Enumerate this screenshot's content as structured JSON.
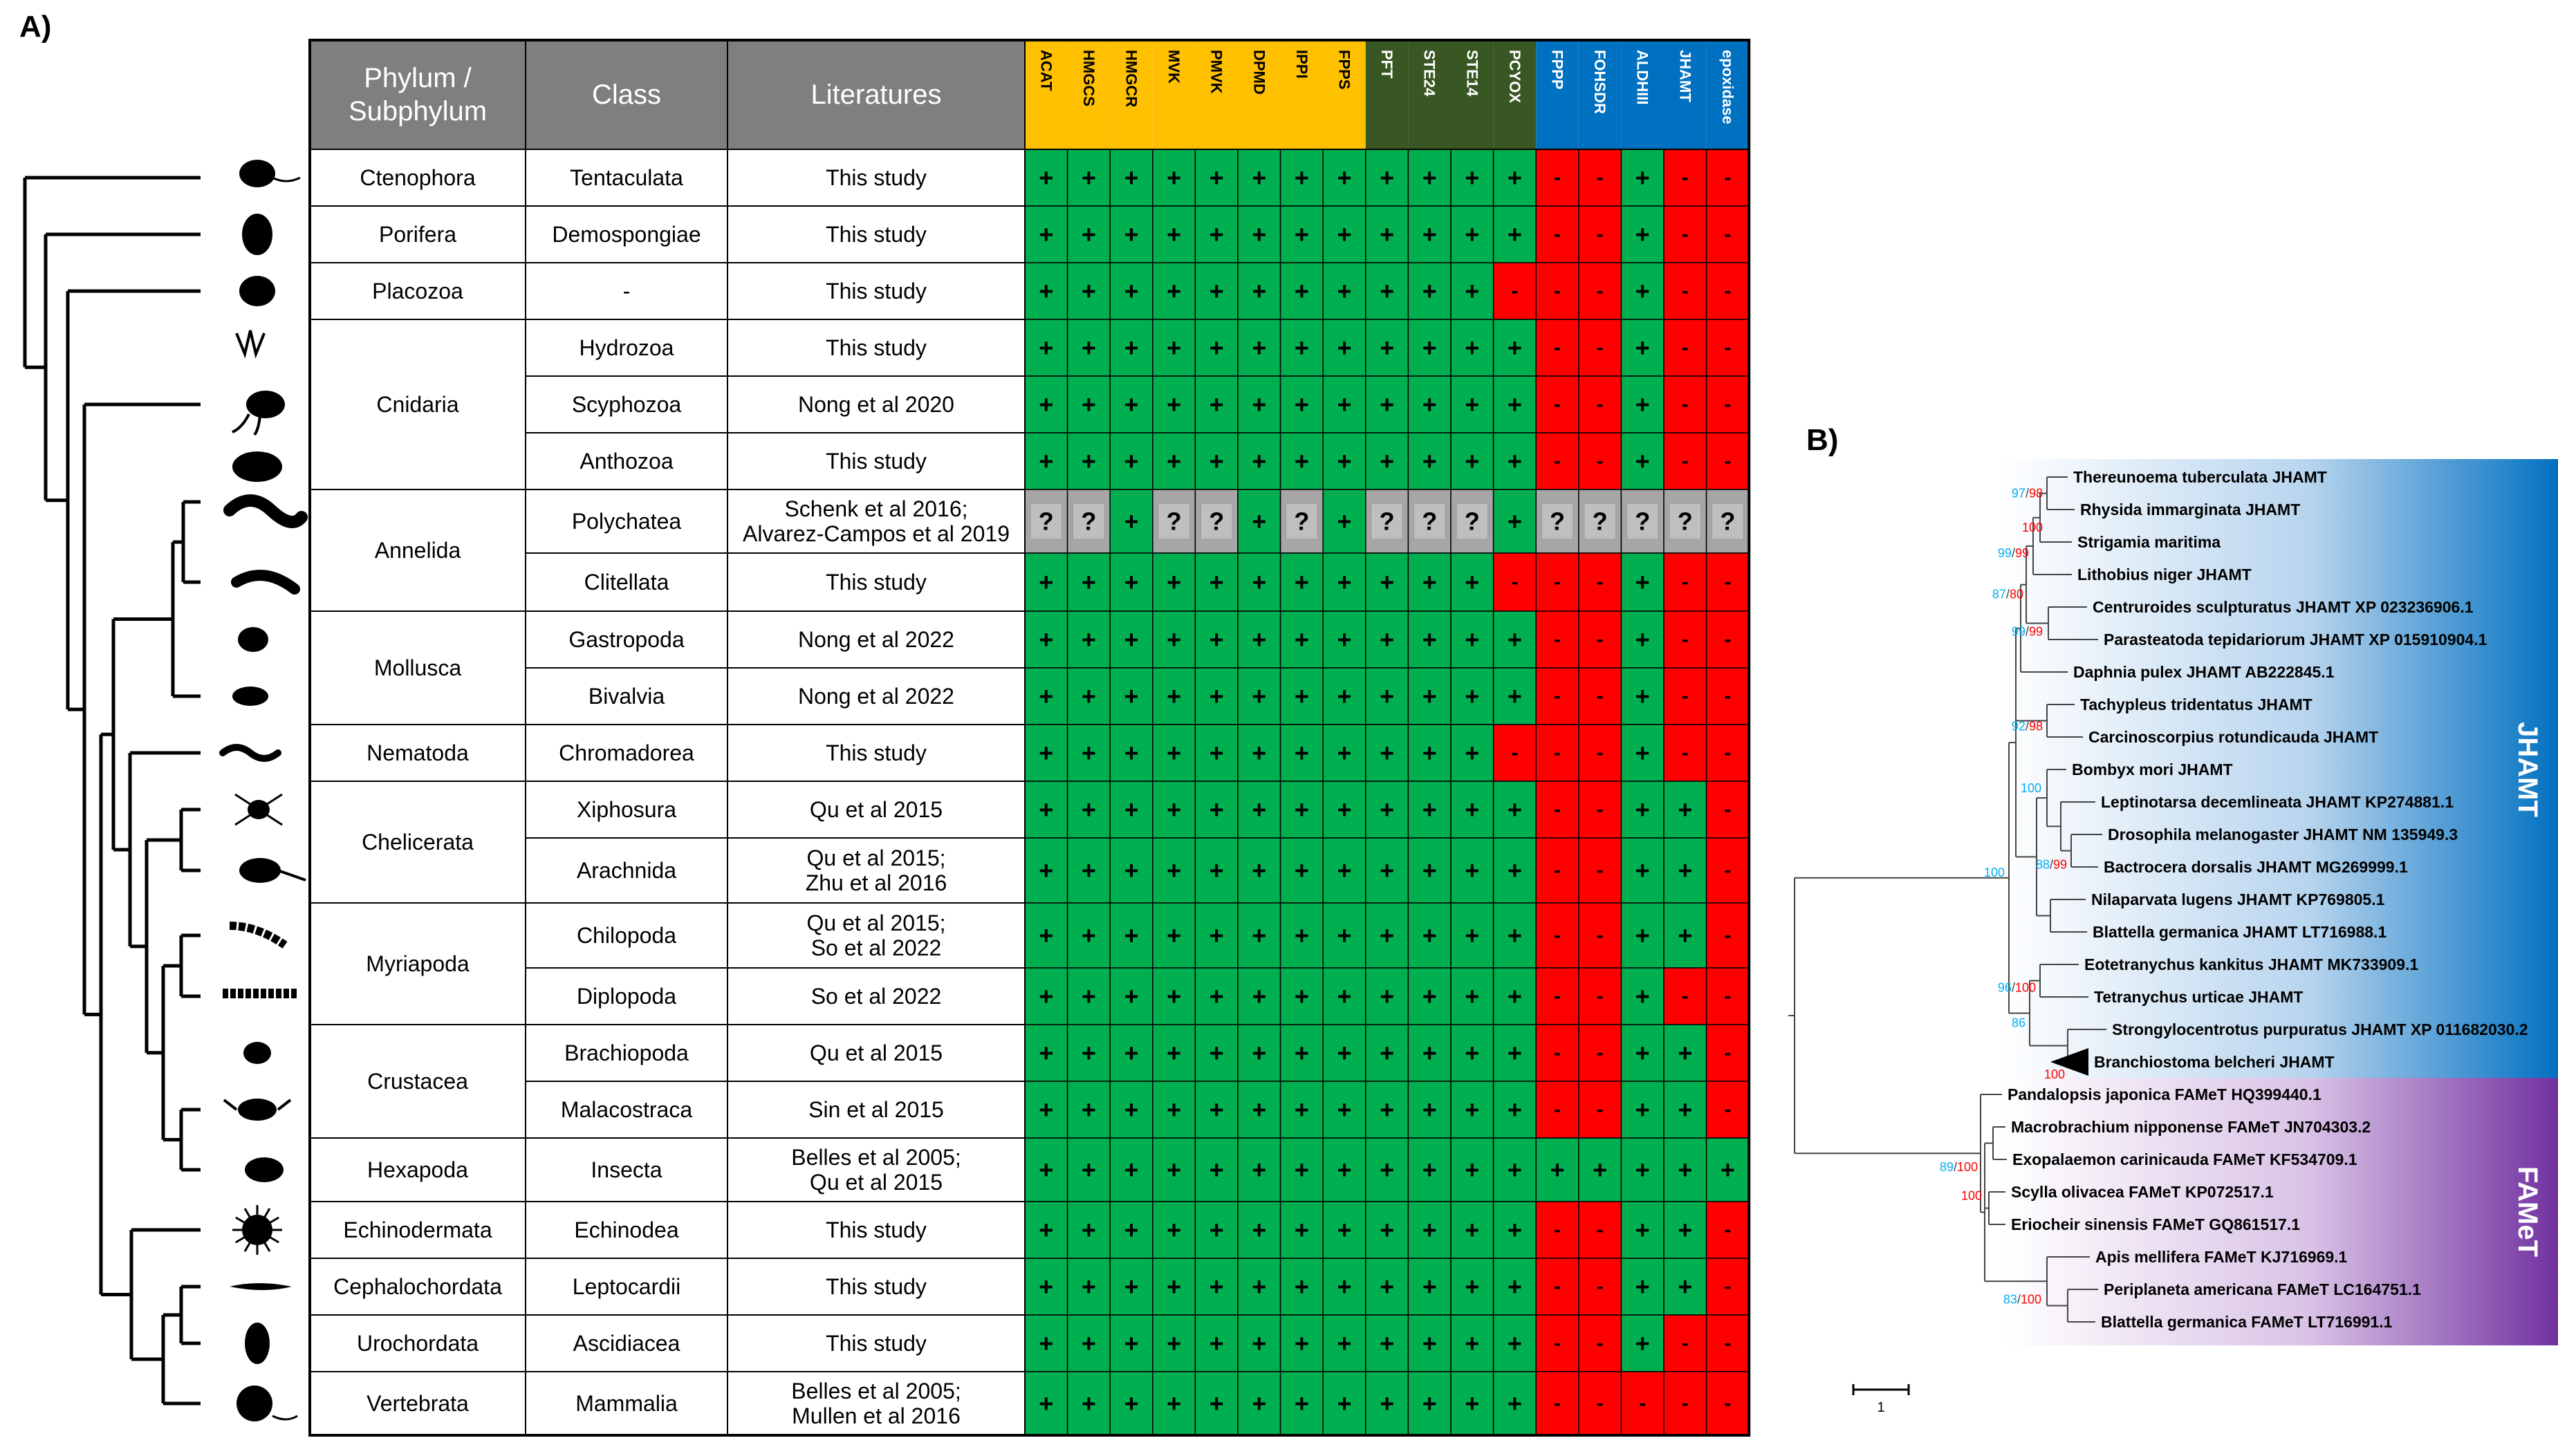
{
  "panel_a": {
    "label": "A)",
    "header": {
      "phylum": [
        "Phylum /",
        "Subphylum"
      ],
      "class": "Class",
      "literature": "Literatures"
    },
    "genes": [
      {
        "name": "ACAT",
        "group": "mva"
      },
      {
        "name": "HMGCS",
        "group": "mva"
      },
      {
        "name": "HMGCR",
        "group": "mva"
      },
      {
        "name": "MVK",
        "group": "mva"
      },
      {
        "name": "PMVK",
        "group": "mva"
      },
      {
        "name": "DPMD",
        "group": "mva"
      },
      {
        "name": "IPPI",
        "group": "mva"
      },
      {
        "name": "FPPS",
        "group": "mva"
      },
      {
        "name": "PFT",
        "group": "prenyl"
      },
      {
        "name": "STE24",
        "group": "prenyl"
      },
      {
        "name": "STE14",
        "group": "prenyl"
      },
      {
        "name": "PCYOX",
        "group": "prenyl"
      },
      {
        "name": "FPPP",
        "group": "jh"
      },
      {
        "name": "FOHSDR",
        "group": "jh"
      },
      {
        "name": "ALDHIII",
        "group": "jh"
      },
      {
        "name": "JHAMT",
        "group": "jh"
      },
      {
        "name": "epoxidase",
        "group": "jh"
      }
    ],
    "group_colors": {
      "mva": "#ffc000",
      "prenyl": "#385723",
      "jh": "#0070c0"
    },
    "cell_colors": {
      "plus": "#00b050",
      "minus": "#ff0000",
      "unknown": "#a6a6a6"
    },
    "symbols": {
      "plus": "+",
      "minus": "-",
      "unknown": "?"
    },
    "phyla": [
      {
        "name": "Ctenophora",
        "rows": [
          0
        ]
      },
      {
        "name": "Porifera",
        "rows": [
          1
        ]
      },
      {
        "name": "Placozoa",
        "rows": [
          2
        ]
      },
      {
        "name": "Cnidaria",
        "rows": [
          3,
          4,
          5
        ]
      },
      {
        "name": "Annelida",
        "rows": [
          6,
          7
        ]
      },
      {
        "name": "Mollusca",
        "rows": [
          8,
          9
        ]
      },
      {
        "name": "Nematoda",
        "rows": [
          10
        ]
      },
      {
        "name": "Chelicerata",
        "rows": [
          11,
          12
        ]
      },
      {
        "name": "Myriapoda",
        "rows": [
          13,
          14
        ]
      },
      {
        "name": "Crustacea",
        "rows": [
          15,
          16
        ]
      },
      {
        "name": "Hexapoda",
        "rows": [
          17
        ]
      },
      {
        "name": "Echinodermata",
        "rows": [
          18
        ]
      },
      {
        "name": "Cephalochordata",
        "rows": [
          19
        ]
      },
      {
        "name": "Urochordata",
        "rows": [
          20
        ]
      },
      {
        "name": "Vertebrata",
        "rows": [
          21
        ]
      }
    ],
    "rows": [
      {
        "class": "Tentaculata",
        "lit": [
          "This study"
        ],
        "cells": "++++++++++++--+--"
      },
      {
        "class": "Demospongiae",
        "lit": [
          "This study"
        ],
        "cells": "++++++++++++--+--"
      },
      {
        "class": "-",
        "lit": [
          "This study"
        ],
        "cells": "+++++++++++---+--"
      },
      {
        "class": "Hydrozoa",
        "lit": [
          "This study"
        ],
        "cells": "++++++++++++--+--"
      },
      {
        "class": "Scyphozoa",
        "lit": [
          "Nong et al 2020"
        ],
        "cells": "++++++++++++--+--"
      },
      {
        "class": "Anthozoa",
        "lit": [
          "This study"
        ],
        "cells": "++++++++++++--+--"
      },
      {
        "class": "Polychatea",
        "lit": [
          "Schenk et al 2016;",
          "Alvarez-Campos et al 2019"
        ],
        "cells": "??+??+?+???+?????"
      },
      {
        "class": "Clitellata",
        "lit": [
          "This study"
        ],
        "cells": "+++++++++++---+--"
      },
      {
        "class": "Gastropoda",
        "lit": [
          "Nong et al 2022"
        ],
        "cells": "++++++++++++--+--"
      },
      {
        "class": "Bivalvia",
        "lit": [
          "Nong et al 2022"
        ],
        "cells": "++++++++++++--+--"
      },
      {
        "class": "Chromadorea",
        "lit": [
          "This study"
        ],
        "cells": "+++++++++++---+--"
      },
      {
        "class": "Xiphosura",
        "lit": [
          "Qu et al 2015"
        ],
        "cells": "++++++++++++--++-"
      },
      {
        "class": "Arachnida",
        "lit": [
          "Qu et al 2015;",
          "Zhu et al 2016"
        ],
        "cells": "++++++++++++--++-"
      },
      {
        "class": "Chilopoda",
        "lit": [
          "Qu et al 2015;",
          "So et al 2022"
        ],
        "cells": "++++++++++++--++-"
      },
      {
        "class": "Diplopoda",
        "lit": [
          "So et al 2022"
        ],
        "cells": "++++++++++++--+--"
      },
      {
        "class": "Brachiopoda",
        "lit": [
          "Qu et al 2015"
        ],
        "cells": "++++++++++++--++-"
      },
      {
        "class": "Malacostraca",
        "lit": [
          "Sin et al 2015"
        ],
        "cells": "++++++++++++--++-"
      },
      {
        "class": "Insecta",
        "lit": [
          "Belles et al 2005;",
          "Qu et al 2015"
        ],
        "cells": "+++++++++++++++++"
      },
      {
        "class": "Echinodea",
        "lit": [
          "This study"
        ],
        "cells": "++++++++++++--++-"
      },
      {
        "class": "Leptocardii",
        "lit": [
          "This study"
        ],
        "cells": "++++++++++++--++-"
      },
      {
        "class": "Ascidiacea",
        "lit": [
          "This study"
        ],
        "cells": "++++++++++++--+--"
      },
      {
        "class": "Mammalia",
        "lit": [
          "Belles et al 2005;",
          "Mullen et al 2016"
        ],
        "cells": "++++++++++++-----"
      }
    ]
  },
  "panel_b": {
    "label": "B)",
    "clade_labels": {
      "jhamt": "JHAMT",
      "famet": "FAMeT"
    },
    "clade_colors": {
      "jhamt": "#0070c0",
      "famet": "#7030a0"
    },
    "scale_label": "1",
    "taxa": [
      "Thereunoema tuberculata JHAMT",
      "Rhysida immarginata JHAMT",
      "Strigamia maritima",
      "Lithobius niger JHAMT",
      "Centruroides sculpturatus JHAMT XP 023236906.1",
      "Parasteatoda tepidariorum JHAMT XP 015910904.1",
      "Daphnia pulex JHAMT AB222845.1",
      "Tachypleus tridentatus JHAMT",
      "Carcinoscorpius rotundicauda JHAMT",
      "Bombyx mori JHAMT",
      "Leptinotarsa decemlineata JHAMT KP274881.1",
      "Drosophila melanogaster JHAMT NM 135949.3",
      "Bactrocera dorsalis JHAMT MG269999.1",
      "Nilaparvata lugens JHAMT KP769805.1",
      "Blattella germanica JHAMT LT716988.1",
      "Eotetranychus kankitus JHAMT MK733909.1",
      "Tetranychus urticae JHAMT",
      "Strongylocentrotus purpuratus JHAMT XP 011682030.2",
      "Branchiostoma belcheri JHAMT",
      "Pandalopsis japonica FAMeT HQ399440.1",
      "Macrobrachium nipponense FAMeT JN704303.2",
      "Exopalaemon carinicauda FAMeT KF534709.1",
      "Scylla olivacea FAMeT KP072517.1",
      "Eriocheir sinensis FAMeT GQ861517.1",
      "Apis mellifera FAMeT KJ716969.1",
      "Periplaneta americana FAMeT LC164751.1",
      "Blattella germanica FAMeT LT716991.1"
    ],
    "support": [
      {
        "id": "s1",
        "a": "97",
        "b": "98"
      },
      {
        "id": "s2",
        "a": "",
        "b": "100"
      },
      {
        "id": "s3",
        "a": "99",
        "b": "99"
      },
      {
        "id": "s4",
        "a": "87",
        "b": "80"
      },
      {
        "id": "s5",
        "a": "99",
        "b": "99"
      },
      {
        "id": "s6",
        "a": "92",
        "b": "98"
      },
      {
        "id": "s7",
        "a": "100",
        "b": ""
      },
      {
        "id": "s8",
        "a": "88",
        "b": "99"
      },
      {
        "id": "s9",
        "a": "100",
        "b": ""
      },
      {
        "id": "s10",
        "a": "96",
        "b": "100"
      },
      {
        "id": "s11",
        "a": "86",
        "b": ""
      },
      {
        "id": "s12",
        "a": "",
        "b": "100"
      },
      {
        "id": "s13",
        "a": "89",
        "b": "100"
      },
      {
        "id": "s14",
        "a": "",
        "b": "100"
      },
      {
        "id": "s15",
        "a": "83",
        "b": "100"
      }
    ]
  }
}
